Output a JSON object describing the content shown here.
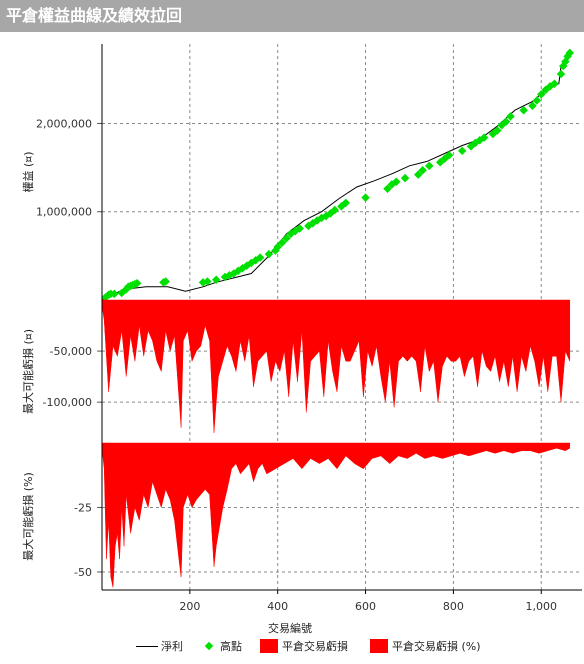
{
  "title": "平倉權益曲線及績效拉回",
  "colors": {
    "net": "#000000",
    "high": "#00e000",
    "dd": "#ff0000",
    "grid": "#8a8a8a",
    "titlebar": "#a7a7a7"
  },
  "chart_data": [
    {
      "type": "line",
      "panel": "equity",
      "ylabel": "權益 (¤)",
      "yticks": [
        {
          "v": 1000000,
          "label": "1,000,000"
        },
        {
          "v": 2000000,
          "label": "2,000,000"
        }
      ],
      "ylim": [
        0,
        2900000
      ],
      "xlim": [
        0,
        1070
      ],
      "grid": true,
      "series": [
        {
          "name": "淨利",
          "kind": "line",
          "x": [
            0,
            20,
            50,
            100,
            150,
            190,
            230,
            260,
            300,
            340,
            380,
            420,
            460,
            500,
            540,
            580,
            620,
            660,
            700,
            740,
            780,
            820,
            860,
            900,
            940,
            980,
            1020,
            1040,
            1045,
            1060,
            1068
          ],
          "y": [
            0,
            50000,
            120000,
            150000,
            150000,
            100000,
            150000,
            200000,
            250000,
            300000,
            500000,
            750000,
            900000,
            1000000,
            1150000,
            1280000,
            1350000,
            1430000,
            1520000,
            1570000,
            1660000,
            1750000,
            1820000,
            1970000,
            2150000,
            2250000,
            2420000,
            2450000,
            2650000,
            2780000,
            2820000
          ]
        },
        {
          "name": "高點",
          "kind": "marker",
          "x": [
            8,
            15,
            20,
            28,
            45,
            55,
            60,
            65,
            70,
            75,
            80,
            140,
            145,
            230,
            240,
            260,
            280,
            290,
            300,
            310,
            320,
            330,
            340,
            350,
            360,
            380,
            395,
            400,
            410,
            420,
            430,
            440,
            450,
            470,
            480,
            490,
            500,
            510,
            520,
            530,
            545,
            555,
            600,
            650,
            660,
            670,
            690,
            720,
            730,
            745,
            770,
            780,
            790,
            820,
            840,
            850,
            860,
            870,
            890,
            900,
            910,
            920,
            930,
            960,
            980,
            990,
            1000,
            1010,
            1020,
            1030,
            1045,
            1050,
            1055,
            1060,
            1065
          ],
          "y": [
            30000,
            60000,
            70000,
            70000,
            80000,
            120000,
            150000,
            160000,
            170000,
            180000,
            190000,
            200000,
            210000,
            200000,
            210000,
            230000,
            260000,
            280000,
            300000,
            330000,
            360000,
            390000,
            420000,
            450000,
            480000,
            520000,
            560000,
            600000,
            650000,
            700000,
            750000,
            780000,
            810000,
            840000,
            870000,
            900000,
            930000,
            950000,
            980000,
            1020000,
            1060000,
            1100000,
            1160000,
            1260000,
            1310000,
            1340000,
            1380000,
            1420000,
            1470000,
            1520000,
            1560000,
            1600000,
            1640000,
            1690000,
            1740000,
            1780000,
            1810000,
            1840000,
            1880000,
            1920000,
            1980000,
            2020000,
            2080000,
            2150000,
            2200000,
            2260000,
            2330000,
            2380000,
            2420000,
            2450000,
            2560000,
            2650000,
            2700000,
            2760000,
            2800000
          ]
        }
      ]
    },
    {
      "type": "area",
      "panel": "drawdown-abs",
      "ylabel": "最大可能虧損 (¤)",
      "yticks": [
        {
          "v": -50000,
          "label": "-50,000"
        },
        {
          "v": -100000,
          "label": "-100,000"
        }
      ],
      "ylim": [
        -140000,
        0
      ],
      "xlim": [
        0,
        1070
      ],
      "grid": true,
      "series": [
        {
          "name": "平倉交易虧損",
          "kind": "area",
          "x": [
            0,
            5,
            15,
            25,
            35,
            45,
            55,
            65,
            75,
            85,
            95,
            105,
            115,
            125,
            135,
            145,
            155,
            165,
            175,
            180,
            185,
            195,
            205,
            215,
            225,
            235,
            245,
            255,
            260,
            265,
            275,
            285,
            295,
            305,
            315,
            325,
            335,
            345,
            355,
            365,
            375,
            385,
            395,
            405,
            415,
            425,
            435,
            445,
            455,
            465,
            475,
            485,
            495,
            505,
            515,
            525,
            535,
            545,
            555,
            565,
            575,
            585,
            595,
            605,
            615,
            625,
            635,
            645,
            655,
            665,
            675,
            685,
            695,
            705,
            715,
            725,
            735,
            745,
            755,
            765,
            775,
            785,
            795,
            805,
            815,
            825,
            835,
            845,
            855,
            865,
            875,
            885,
            895,
            905,
            915,
            925,
            935,
            945,
            955,
            965,
            975,
            985,
            995,
            1005,
            1015,
            1025,
            1035,
            1045,
            1055,
            1065
          ],
          "y": [
            -5000,
            -20000,
            -90000,
            -45000,
            -55000,
            -30000,
            -75000,
            -35000,
            -60000,
            -25000,
            -55000,
            -30000,
            -40000,
            -60000,
            -70000,
            -30000,
            -50000,
            -35000,
            -95000,
            -125000,
            -40000,
            -30000,
            -60000,
            -50000,
            -45000,
            -25000,
            -40000,
            -130000,
            -100000,
            -75000,
            -60000,
            -45000,
            -55000,
            -70000,
            -40000,
            -60000,
            -35000,
            -85000,
            -60000,
            -55000,
            -50000,
            -80000,
            -60000,
            -70000,
            -50000,
            -95000,
            -40000,
            -80000,
            -30000,
            -110000,
            -60000,
            -55000,
            -50000,
            -95000,
            -40000,
            -70000,
            -90000,
            -45000,
            -60000,
            -60000,
            -50000,
            -40000,
            -95000,
            -50000,
            -65000,
            -45000,
            -75000,
            -100000,
            -60000,
            -105000,
            -60000,
            -55000,
            -60000,
            -55000,
            -60000,
            -90000,
            -45000,
            -70000,
            -60000,
            -100000,
            -65000,
            -55000,
            -60000,
            -60000,
            -55000,
            -75000,
            -60000,
            -55000,
            -85000,
            -50000,
            -65000,
            -70000,
            -55000,
            -80000,
            -60000,
            -85000,
            -55000,
            -90000,
            -55000,
            -70000,
            -45000,
            -60000,
            -85000,
            -55000,
            -90000,
            -55000,
            -55000,
            -100000,
            -50000,
            -60000
          ]
        }
      ]
    },
    {
      "type": "area",
      "panel": "drawdown-pct",
      "ylabel": "最大可能虧損 (%)",
      "yticks": [
        {
          "v": -25,
          "label": "-25"
        },
        {
          "v": -50,
          "label": "-50"
        }
      ],
      "ylim": [
        -57,
        0
      ],
      "xlim": [
        0,
        1070
      ],
      "xlabel": "交易編號",
      "xticks": [
        {
          "v": 200,
          "label": "200"
        },
        {
          "v": 400,
          "label": "400"
        },
        {
          "v": 600,
          "label": "600"
        },
        {
          "v": 800,
          "label": "800"
        },
        {
          "v": 1000,
          "label": "1,000"
        }
      ],
      "grid": true,
      "series": [
        {
          "name": "平倉交易虧損 (%)",
          "kind": "area",
          "x": [
            0,
            5,
            10,
            15,
            20,
            25,
            30,
            35,
            40,
            45,
            50,
            55,
            65,
            75,
            85,
            95,
            105,
            115,
            125,
            135,
            145,
            155,
            165,
            175,
            180,
            185,
            195,
            205,
            215,
            225,
            235,
            245,
            255,
            260,
            265,
            275,
            285,
            295,
            305,
            315,
            325,
            335,
            345,
            355,
            365,
            375,
            395,
            415,
            435,
            455,
            475,
            495,
            515,
            535,
            555,
            575,
            595,
            615,
            635,
            655,
            675,
            695,
            715,
            735,
            755,
            775,
            795,
            815,
            835,
            855,
            875,
            895,
            915,
            935,
            955,
            975,
            995,
            1015,
            1035,
            1055,
            1065
          ],
          "y": [
            -2,
            -10,
            -45,
            -30,
            -52,
            -56,
            -40,
            -35,
            -45,
            -25,
            -40,
            -20,
            -35,
            -25,
            -30,
            -20,
            -25,
            -15,
            -20,
            -25,
            -18,
            -22,
            -30,
            -45,
            -52,
            -25,
            -20,
            -25,
            -22,
            -20,
            -18,
            -20,
            -48,
            -40,
            -35,
            -25,
            -18,
            -10,
            -8,
            -12,
            -10,
            -8,
            -15,
            -10,
            -8,
            -12,
            -10,
            -8,
            -6,
            -10,
            -6,
            -8,
            -6,
            -10,
            -5,
            -8,
            -10,
            -6,
            -5,
            -8,
            -5,
            -6,
            -4,
            -6,
            -5,
            -6,
            -5,
            -4,
            -5,
            -4,
            -3,
            -4,
            -3,
            -4,
            -3,
            -3,
            -4,
            -3,
            -2,
            -3,
            -2
          ]
        }
      ]
    }
  ],
  "legend": [
    {
      "label": "淨利",
      "kind": "line"
    },
    {
      "label": "高點",
      "kind": "marker"
    },
    {
      "label": "平倉交易虧損",
      "kind": "swatch"
    },
    {
      "label": "平倉交易虧損 (%)",
      "kind": "swatch"
    }
  ]
}
